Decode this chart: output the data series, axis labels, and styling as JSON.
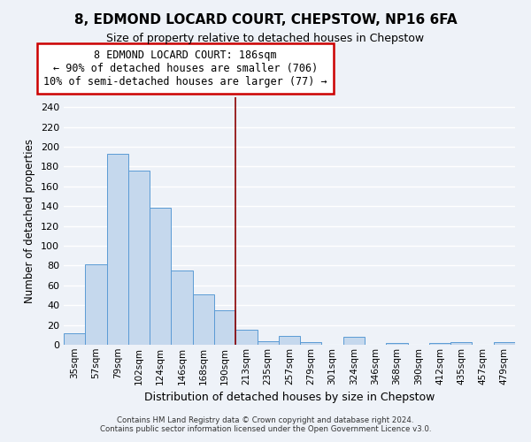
{
  "title": "8, EDMOND LOCARD COURT, CHEPSTOW, NP16 6FA",
  "subtitle": "Size of property relative to detached houses in Chepstow",
  "xlabel": "Distribution of detached houses by size in Chepstow",
  "ylabel": "Number of detached properties",
  "bar_labels": [
    "35sqm",
    "57sqm",
    "79sqm",
    "102sqm",
    "124sqm",
    "146sqm",
    "168sqm",
    "190sqm",
    "213sqm",
    "235sqm",
    "257sqm",
    "279sqm",
    "301sqm",
    "324sqm",
    "346sqm",
    "368sqm",
    "390sqm",
    "412sqm",
    "435sqm",
    "457sqm",
    "479sqm"
  ],
  "bar_values": [
    12,
    81,
    193,
    176,
    138,
    75,
    51,
    35,
    15,
    4,
    9,
    3,
    0,
    8,
    0,
    2,
    0,
    2,
    3,
    0,
    3
  ],
  "bar_color": "#c5d8ed",
  "bar_edge_color": "#5b9bd5",
  "vline_color": "#8b0000",
  "ylim": [
    0,
    250
  ],
  "yticks": [
    0,
    20,
    40,
    60,
    80,
    100,
    120,
    140,
    160,
    180,
    200,
    220,
    240
  ],
  "annotation_title": "8 EDMOND LOCARD COURT: 186sqm",
  "annotation_line1": "← 90% of detached houses are smaller (706)",
  "annotation_line2": "10% of semi-detached houses are larger (77) →",
  "annotation_box_color": "white",
  "annotation_box_edge": "#cc0000",
  "footer_line1": "Contains HM Land Registry data © Crown copyright and database right 2024.",
  "footer_line2": "Contains public sector information licensed under the Open Government Licence v3.0.",
  "background_color": "#eef2f8",
  "grid_color": "white"
}
